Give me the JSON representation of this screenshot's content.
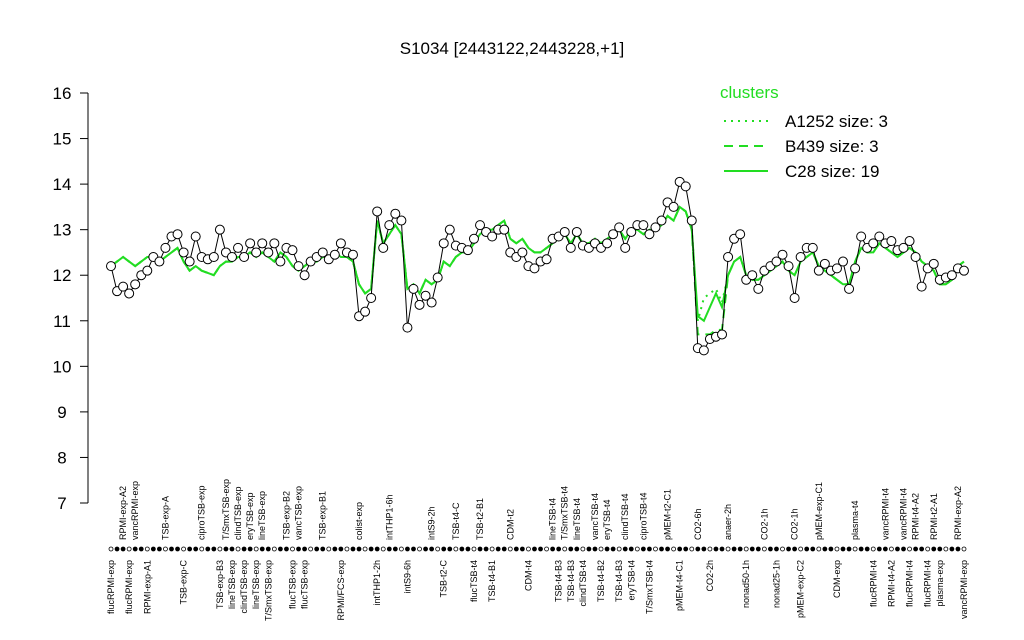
{
  "chart_data": {
    "type": "line",
    "title": "S1034 [2443122,2443228,+1]",
    "ylim": [
      7,
      16
    ],
    "yticks": [
      7,
      8,
      9,
      10,
      11,
      12,
      13,
      14,
      15,
      16
    ],
    "legend_title": "clusters",
    "legend_position": "top-right",
    "categories": [
      "flucRPMI-exp",
      null,
      "RPMI-exp-A2",
      "flucRPMI-exp",
      "vancRPMI-exp",
      null,
      "RPMI-exp-A1",
      null,
      null,
      "TSB-exp-A",
      null,
      null,
      "TSB-exp-C",
      null,
      null,
      "ciproTSB-exp",
      null,
      null,
      "TSB-exp-B3",
      "T/SmxTSB-exp",
      "lineTSB-exp",
      "clindTSB-exp",
      "clindTSB-exp",
      "eryTSB-exp",
      "lineTSB-exp",
      "lineTSB-exp",
      "T/SmxTSB-exp",
      null,
      null,
      "TSB-exp-B2",
      "flucTSB-exp",
      "vancTSB-exp",
      "flucTSB-exp",
      null,
      null,
      "TSB-exp-B1",
      null,
      null,
      "RPMI/FCS-exp",
      null,
      null,
      "colist-exp",
      null,
      null,
      "intTHP1-2h",
      null,
      "intTHP1-6h",
      null,
      null,
      "intS9-6h",
      null,
      null,
      null,
      "intS9-2h",
      null,
      "TSB-t2-C",
      null,
      "TSB-t4-C",
      null,
      null,
      "flucTSB-t4",
      "TSB-t2-B1",
      null,
      "TSB-t4-B1",
      null,
      null,
      "CDM-t2",
      null,
      null,
      "CDM-t4",
      null,
      null,
      null,
      "lineTSB-t4",
      "TSB-t4-B3",
      "T/SmxTSB-t4",
      "TSB-t4-B3",
      "lineTSB-t4",
      "clindTSB-t4",
      null,
      "vancTSB-t4",
      "TSB-t4-B2",
      "eryTSB-t4",
      null,
      "TSB-t4-B3",
      "clindTSB-t4",
      "eryTSB-t4",
      null,
      "ciproTSB-t4",
      "T/SmxTSB-t4",
      null,
      null,
      "pMEM-t2-C1",
      null,
      "pMEM-t4-C1",
      null,
      null,
      "CO2-6h",
      null,
      "CO2-2h",
      null,
      null,
      "anaer-2h",
      null,
      null,
      "nonad50-1h",
      null,
      null,
      "CO2-1h",
      null,
      "nonad25-1h",
      null,
      null,
      "CO2-1h",
      "pMEM-exp-C2",
      null,
      null,
      "pMEM-exp-C1",
      null,
      null,
      "CDM-exp",
      null,
      null,
      "plasma-t4",
      null,
      null,
      "flucRPMI-t4",
      null,
      "vancRPMI-t4",
      "RPMI-t4-A2",
      null,
      "vancRPMI-t4",
      "flucRPMI-t4",
      "RPMI-t4-A2",
      null,
      "flucRPMI-t4",
      "RPMI-t2-A1",
      "plasma-exp",
      null,
      null,
      "RPMI-exp-A2",
      "vancRPMI-exp"
    ],
    "series": [
      {
        "color": "#000000",
        "dash": "solid",
        "markers": true,
        "values": [
          12.2,
          11.65,
          11.75,
          11.6,
          11.8,
          12.0,
          12.1,
          12.4,
          12.3,
          12.6,
          12.85,
          12.9,
          12.5,
          12.3,
          12.85,
          12.4,
          12.35,
          12.4,
          13.0,
          12.5,
          12.4,
          12.6,
          12.4,
          12.7,
          12.5,
          12.7,
          12.5,
          12.7,
          12.3,
          12.6,
          12.55,
          12.2,
          12.0,
          12.3,
          12.4,
          12.5,
          12.35,
          12.45,
          12.7,
          12.5,
          12.45,
          11.1,
          11.2,
          11.5,
          13.4,
          12.6,
          13.1,
          13.35,
          13.2,
          10.85,
          11.7,
          11.35,
          11.55,
          11.4,
          11.95,
          12.7,
          13.0,
          12.65,
          12.6,
          12.55,
          12.8,
          13.1,
          12.95,
          12.85,
          13.0,
          13.0,
          12.5,
          12.4,
          12.5,
          12.2,
          12.15,
          12.3,
          12.35,
          12.8,
          12.85,
          12.95,
          12.6,
          12.95,
          12.65,
          12.6,
          12.7,
          12.6,
          12.7,
          12.9,
          13.05,
          12.6,
          12.95,
          13.1,
          13.1,
          12.9,
          13.05,
          13.2,
          13.6,
          13.5,
          14.05,
          13.95,
          13.2,
          10.4,
          10.35,
          10.6,
          10.65,
          10.7,
          12.4,
          12.8,
          12.9,
          11.9,
          12.0,
          11.7,
          12.1,
          12.2,
          12.3,
          12.45,
          12.2,
          11.5,
          12.4,
          12.6,
          12.6,
          12.1,
          12.25,
          12.1,
          12.15,
          12.3,
          11.7,
          12.15,
          12.85,
          12.6,
          12.7,
          12.85,
          12.7,
          12.75,
          12.55,
          12.6,
          12.75,
          12.4,
          11.75,
          12.15,
          12.25,
          11.9,
          11.95,
          12.0,
          12.15,
          12.1
        ]
      },
      {
        "name": "A1252 size: 3",
        "color": "#22dd22",
        "dash": "dotted",
        "markers": false,
        "values": [
          12.2,
          12.3,
          12.4,
          12.3,
          12.2,
          12.3,
          12.4,
          12.4,
          12.3,
          12.4,
          12.5,
          12.6,
          12.3,
          12.1,
          12.2,
          12.1,
          12.05,
          12.0,
          12.2,
          12.3,
          12.3,
          12.4,
          12.4,
          12.5,
          12.4,
          12.5,
          12.4,
          12.3,
          12.5,
          12.4,
          12.2,
          12.1,
          12.2,
          12.3,
          12.3,
          12.4,
          12.4,
          12.5,
          12.4,
          12.4,
          12.3,
          11.8,
          11.6,
          11.7,
          13.2,
          12.7,
          12.9,
          13.1,
          12.9,
          11.7,
          11.8,
          11.6,
          11.9,
          11.8,
          11.9,
          12.3,
          12.2,
          12.4,
          12.5,
          12.5,
          12.7,
          12.9,
          13.0,
          13.0,
          13.1,
          13.2,
          12.8,
          12.7,
          12.8,
          12.6,
          12.5,
          12.5,
          12.6,
          12.7,
          12.8,
          12.9,
          12.7,
          12.9,
          12.7,
          12.7,
          12.8,
          12.7,
          12.8,
          12.9,
          13.0,
          12.8,
          13.0,
          13.0,
          12.9,
          13.0,
          13.0,
          13.1,
          13.3,
          13.2,
          13.5,
          13.4,
          13.0,
          11.0,
          11.5,
          11.6,
          11.7,
          11.4,
          12.0,
          12.3,
          12.4,
          12.0,
          11.9,
          11.9,
          12.0,
          12.1,
          12.2,
          12.3,
          12.1,
          12.0,
          12.3,
          12.4,
          12.5,
          12.2,
          12.1,
          12.0,
          11.9,
          11.8,
          11.8,
          12.3,
          12.6,
          12.5,
          12.5,
          12.7,
          12.6,
          12.5,
          12.4,
          12.5,
          12.6,
          12.5,
          12.3,
          12.2,
          12.1,
          11.8,
          11.8,
          11.9,
          12.2,
          12.3
        ]
      },
      {
        "name": "B439 size: 3",
        "color": "#22dd22",
        "dash": "dashed",
        "markers": false,
        "values": [
          12.2,
          12.3,
          12.4,
          12.3,
          12.2,
          12.3,
          12.4,
          12.4,
          12.3,
          12.4,
          12.5,
          12.6,
          12.3,
          12.1,
          12.2,
          12.1,
          12.05,
          12.0,
          12.2,
          12.3,
          12.3,
          12.4,
          12.4,
          12.5,
          12.4,
          12.5,
          12.4,
          12.3,
          12.5,
          12.4,
          12.2,
          12.1,
          12.2,
          12.3,
          12.3,
          12.4,
          12.4,
          12.5,
          12.4,
          12.4,
          12.3,
          11.8,
          11.6,
          11.7,
          13.2,
          12.7,
          12.9,
          13.1,
          12.9,
          11.7,
          11.8,
          11.6,
          11.9,
          11.8,
          11.9,
          12.3,
          12.2,
          12.4,
          12.5,
          12.5,
          12.7,
          12.9,
          13.0,
          13.0,
          13.1,
          13.2,
          12.8,
          12.7,
          12.8,
          12.6,
          12.5,
          12.5,
          12.6,
          12.7,
          12.8,
          12.9,
          12.7,
          12.9,
          12.7,
          12.7,
          12.8,
          12.7,
          12.8,
          12.9,
          13.0,
          12.8,
          13.0,
          13.0,
          12.9,
          13.0,
          13.0,
          13.1,
          13.3,
          13.2,
          13.5,
          13.4,
          13.0,
          10.7,
          10.7,
          10.7,
          10.8,
          10.8,
          12.0,
          12.3,
          12.4,
          12.0,
          11.9,
          11.9,
          12.0,
          12.1,
          12.2,
          12.3,
          12.1,
          12.0,
          12.3,
          12.4,
          12.5,
          12.2,
          12.1,
          12.0,
          11.9,
          11.8,
          11.8,
          12.3,
          12.6,
          12.5,
          12.5,
          12.7,
          12.6,
          12.5,
          12.4,
          12.5,
          12.6,
          12.5,
          12.3,
          12.2,
          12.1,
          11.8,
          11.8,
          11.9,
          12.2,
          12.3
        ]
      },
      {
        "name": "C28 size: 19",
        "color": "#22dd22",
        "dash": "solid",
        "markers": false,
        "values": [
          12.2,
          12.3,
          12.4,
          12.3,
          12.2,
          12.3,
          12.4,
          12.4,
          12.3,
          12.4,
          12.5,
          12.6,
          12.3,
          12.1,
          12.2,
          12.1,
          12.05,
          12.0,
          12.2,
          12.3,
          12.3,
          12.4,
          12.4,
          12.5,
          12.4,
          12.5,
          12.4,
          12.3,
          12.5,
          12.4,
          12.2,
          12.1,
          12.2,
          12.3,
          12.3,
          12.4,
          12.4,
          12.5,
          12.4,
          12.4,
          12.3,
          11.8,
          11.6,
          11.7,
          13.2,
          12.7,
          12.9,
          13.1,
          12.9,
          11.7,
          11.8,
          11.6,
          11.9,
          11.8,
          11.9,
          12.3,
          12.2,
          12.4,
          12.5,
          12.5,
          12.7,
          12.9,
          13.0,
          13.0,
          13.1,
          13.2,
          12.8,
          12.7,
          12.8,
          12.6,
          12.5,
          12.5,
          12.6,
          12.7,
          12.8,
          12.9,
          12.7,
          12.9,
          12.7,
          12.7,
          12.8,
          12.7,
          12.8,
          12.9,
          13.0,
          12.8,
          13.0,
          13.0,
          12.9,
          13.0,
          13.0,
          13.1,
          13.3,
          13.2,
          13.5,
          13.4,
          13.0,
          11.1,
          11.0,
          11.3,
          11.6,
          11.3,
          12.0,
          12.3,
          12.4,
          12.0,
          11.9,
          11.9,
          12.0,
          12.1,
          12.2,
          12.3,
          12.1,
          12.0,
          12.3,
          12.4,
          12.5,
          12.2,
          12.1,
          12.0,
          11.9,
          11.8,
          11.8,
          12.3,
          12.6,
          12.5,
          12.5,
          12.7,
          12.6,
          12.5,
          12.4,
          12.5,
          12.6,
          12.5,
          12.3,
          12.2,
          12.1,
          11.8,
          11.8,
          11.9,
          12.2,
          12.3
        ]
      }
    ]
  }
}
